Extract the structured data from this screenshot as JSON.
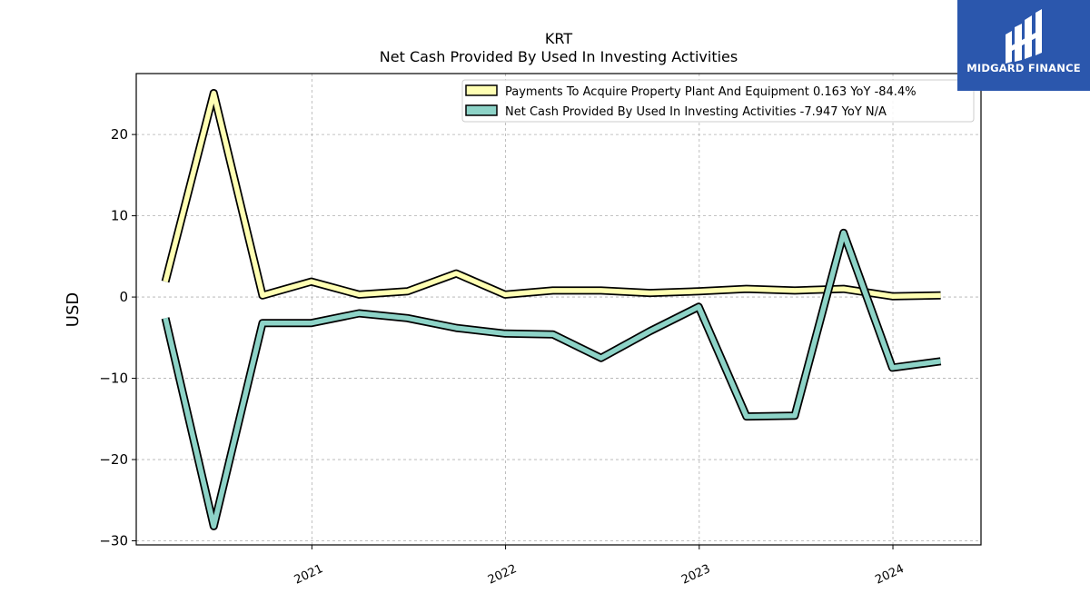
{
  "chart_data": {
    "type": "line",
    "title": "KRT",
    "subtitle": "Net Cash Provided By Used In Investing Activities",
    "xlabel": "",
    "ylabel": "USD",
    "x_ticks": [
      "2021",
      "2022",
      "2023",
      "2024"
    ],
    "y_ticks": [
      -30,
      -20,
      -10,
      0,
      10,
      20
    ],
    "xlim": [
      "2020-02-05",
      "2024-06-15"
    ],
    "ylim": [
      -30.5,
      27.5
    ],
    "grid": true,
    "legend_position": "top-right",
    "x": [
      "2020-03-31",
      "2020-06-30",
      "2020-09-30",
      "2020-12-31",
      "2021-03-31",
      "2021-06-30",
      "2021-09-30",
      "2021-12-31",
      "2022-03-31",
      "2022-06-30",
      "2022-09-30",
      "2022-12-31",
      "2023-03-31",
      "2023-06-30",
      "2023-09-30",
      "2023-12-31",
      "2024-03-31"
    ],
    "series": [
      {
        "name": "Payments To Acquire Property Plant And Equipment",
        "legend_label": "Payments To Acquire Property Plant And Equipment  0.163 YoY -84.4%",
        "color": "#ffffb3",
        "values": [
          1.9,
          25.1,
          0.2,
          1.9,
          0.3,
          0.7,
          2.9,
          0.3,
          0.8,
          0.8,
          0.5,
          0.7,
          1.0,
          0.8,
          1.0,
          0.1,
          0.2
        ]
      },
      {
        "name": "Net Cash Provided By Used In Investing Activities",
        "legend_label": "Net Cash Provided By Used In Investing Activities  -7.947 YoY N/A",
        "color": "#8dd3c7",
        "values": [
          -2.6,
          -28.2,
          -3.2,
          -3.2,
          -2.0,
          -2.6,
          -3.8,
          -4.5,
          -4.6,
          -7.5,
          -4.2,
          -1.2,
          -14.7,
          -14.6,
          7.9,
          -8.7,
          -7.9
        ]
      }
    ]
  },
  "logo": {
    "text": "MIDGARD FINANCE",
    "bg_color": "#2b57ad"
  }
}
